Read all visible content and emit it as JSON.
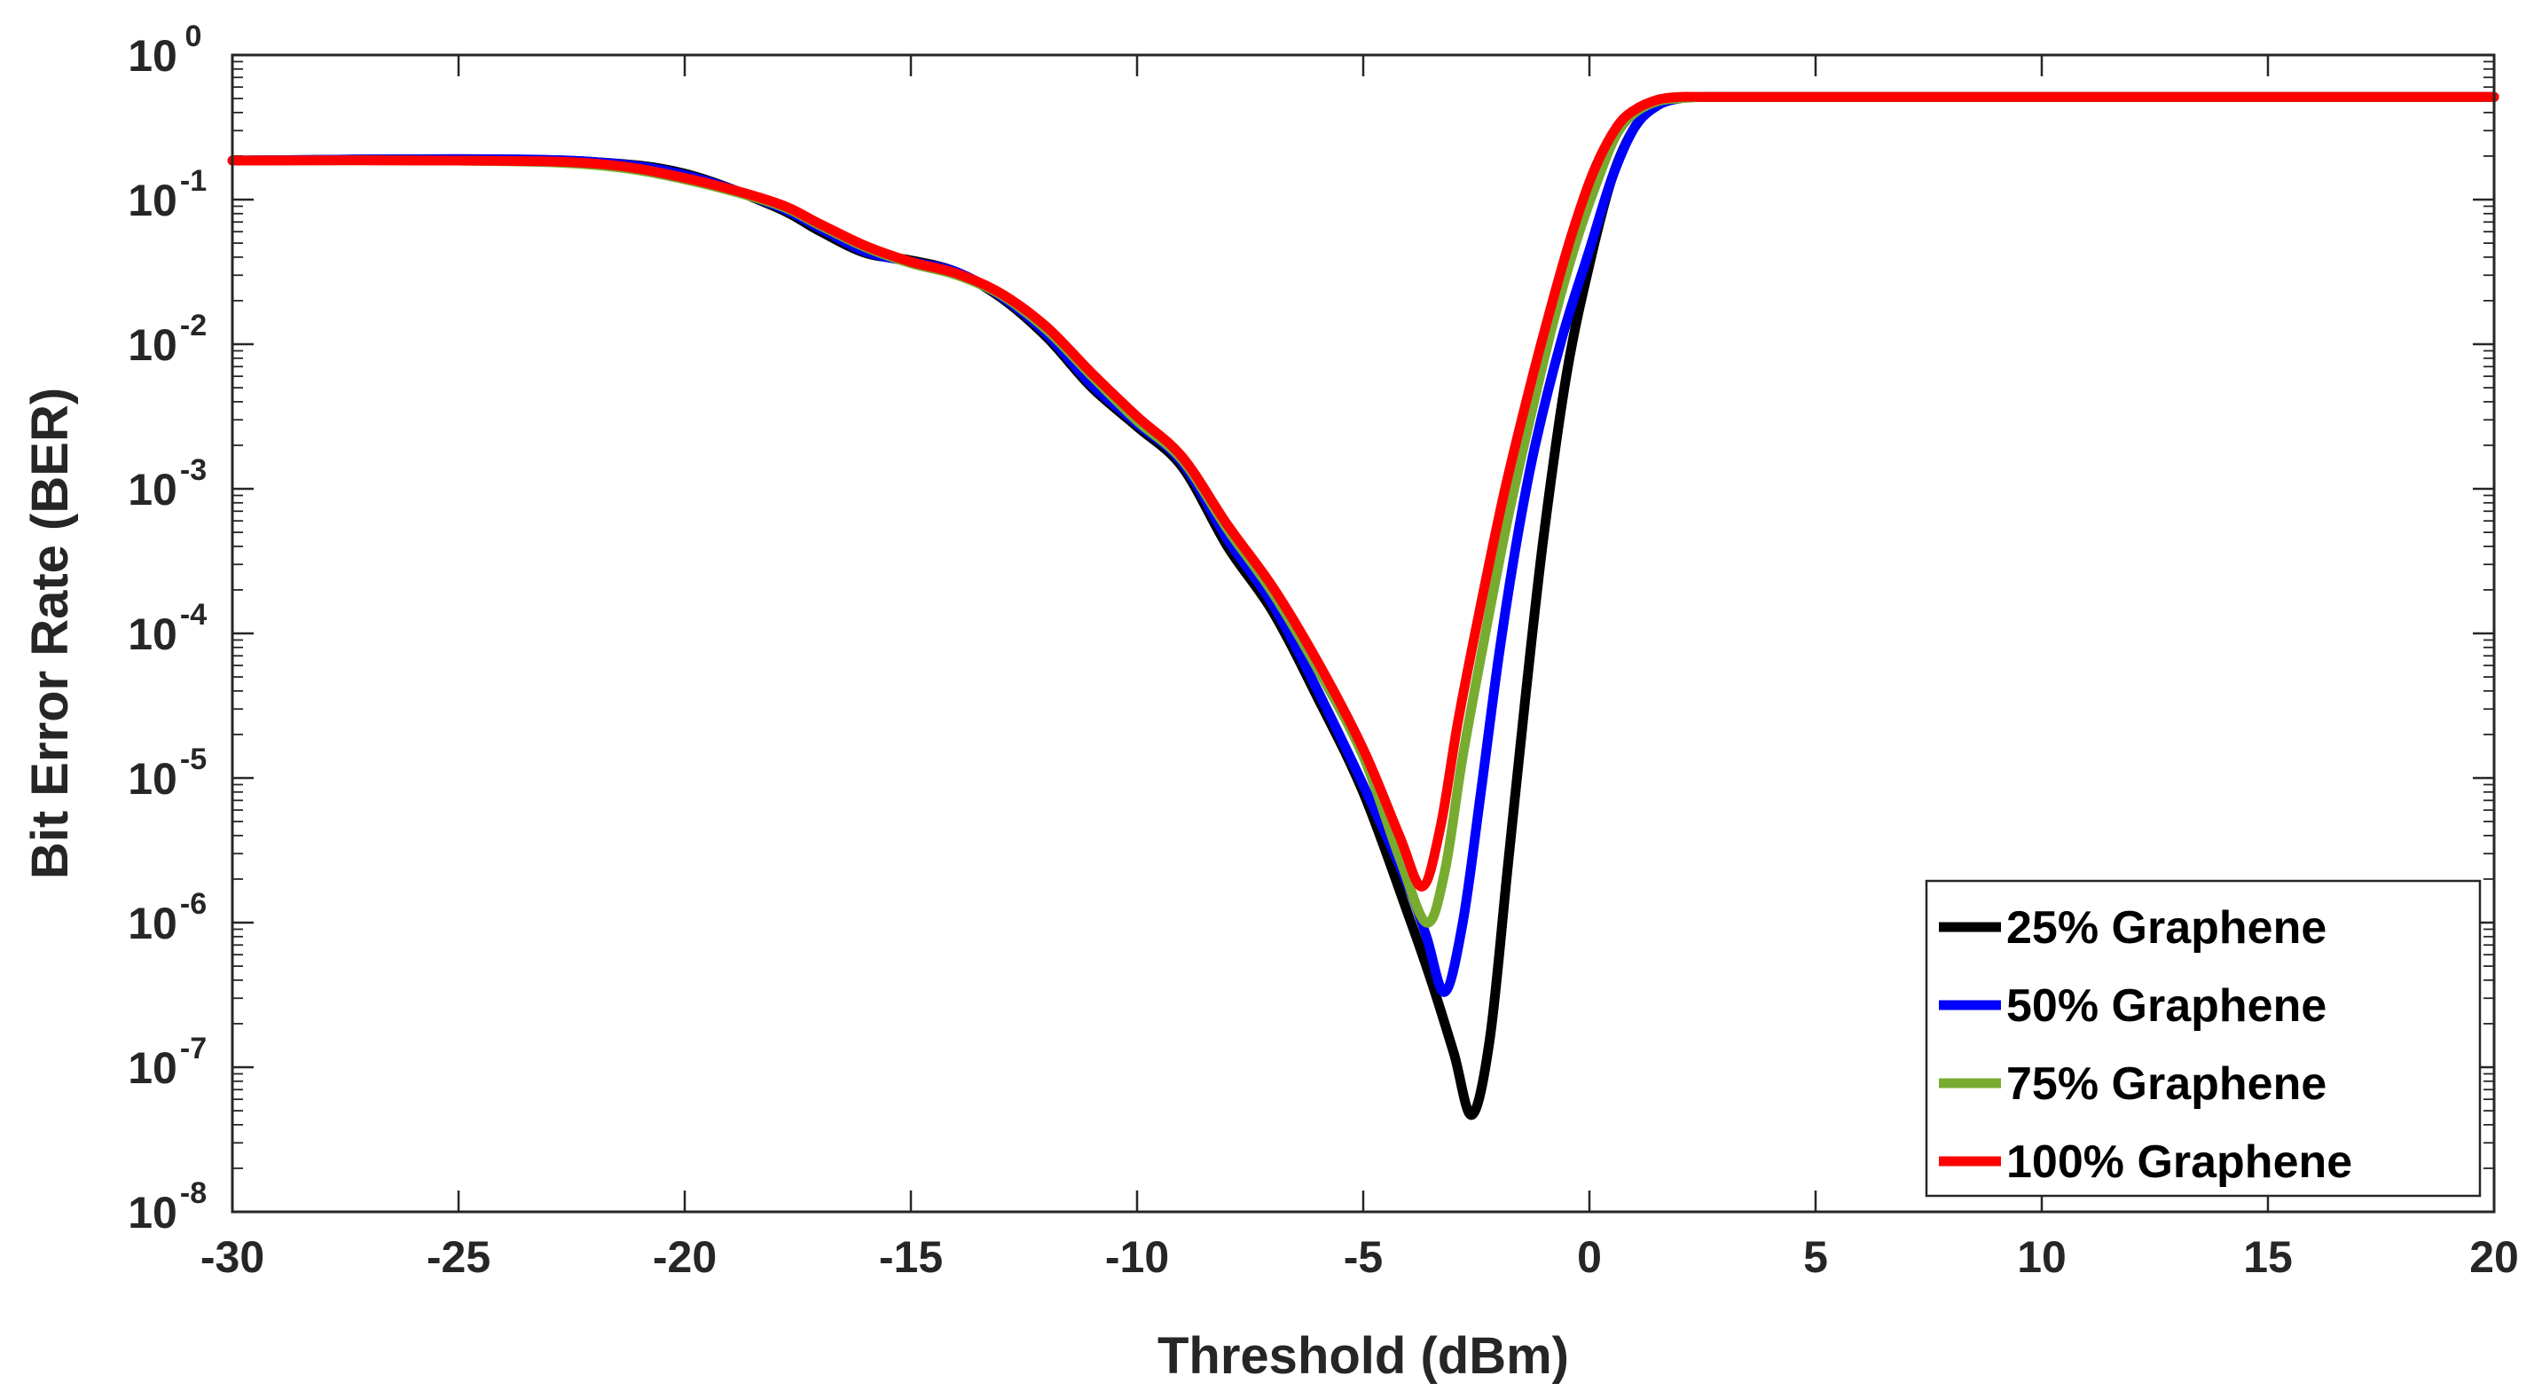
{
  "chart_data": {
    "type": "line",
    "title": "",
    "xlabel": "Threshold (dBm)",
    "ylabel": "Bit Error Rate (BER)",
    "xlim": [
      -30,
      20
    ],
    "ylim_log10": [
      -8,
      0
    ],
    "yscale": "log",
    "grid": false,
    "legend_position": "bottom-right",
    "x_ticks": [
      -30,
      -25,
      -20,
      -15,
      -10,
      -5,
      0,
      5,
      10,
      15,
      20
    ],
    "x_tick_labels": [
      "-30",
      "-25",
      "-20",
      "-15",
      "-10",
      "-5",
      "0",
      "5",
      "10",
      "15",
      "20"
    ],
    "y_ticks": [
      {
        "exp": 0,
        "base": "10",
        "label": "0"
      },
      {
        "exp": -1,
        "base": "10",
        "label": "-1"
      },
      {
        "exp": -2,
        "base": "10",
        "label": "-2"
      },
      {
        "exp": -3,
        "base": "10",
        "label": "-3"
      },
      {
        "exp": -4,
        "base": "10",
        "label": "-4"
      },
      {
        "exp": -5,
        "base": "10",
        "label": "-5"
      },
      {
        "exp": -6,
        "base": "10",
        "label": "-6"
      },
      {
        "exp": -7,
        "base": "10",
        "label": "-7"
      },
      {
        "exp": -8,
        "base": "10",
        "label": "-8"
      }
    ],
    "series": [
      {
        "name": "25% Graphene",
        "color": "#000000",
        "x": [
          -30,
          -25,
          -22,
          -20,
          -18,
          -17,
          -16,
          -15,
          -14,
          -13,
          -12,
          -11,
          -10,
          -9,
          -8,
          -7,
          -6,
          -5,
          -4,
          -3.5,
          -3,
          -2.6,
          -2.2,
          -1.8,
          -1.4,
          -1,
          -0.5,
          0,
          0.5,
          1,
          1.5,
          2,
          2.5,
          3,
          4,
          20
        ],
        "log_ber": [
          -0.73,
          -0.72,
          -0.74,
          -0.82,
          -1.05,
          -1.22,
          -1.37,
          -1.42,
          -1.5,
          -1.68,
          -1.95,
          -2.3,
          -2.57,
          -2.85,
          -3.4,
          -3.85,
          -4.45,
          -5.1,
          -5.95,
          -6.4,
          -6.9,
          -7.33,
          -6.8,
          -5.6,
          -4.4,
          -3.3,
          -2.2,
          -1.45,
          -0.85,
          -0.5,
          -0.35,
          -0.3,
          -0.29,
          -0.29,
          -0.29,
          -0.29
        ]
      },
      {
        "name": "50% Graphene",
        "color": "#0000ff",
        "x": [
          -30,
          -25,
          -22,
          -20,
          -18,
          -17,
          -16,
          -15,
          -14,
          -13,
          -12,
          -11,
          -10,
          -9,
          -8,
          -7,
          -6,
          -5,
          -4,
          -3.6,
          -3.2,
          -2.8,
          -2.4,
          -2,
          -1.6,
          -1.2,
          -0.6,
          0,
          0.5,
          1,
          1.5,
          2,
          2.5,
          3,
          4,
          20
        ],
        "log_ber": [
          -0.73,
          -0.72,
          -0.74,
          -0.83,
          -1.04,
          -1.2,
          -1.36,
          -1.43,
          -1.5,
          -1.67,
          -1.93,
          -2.28,
          -2.55,
          -2.82,
          -3.35,
          -3.8,
          -4.4,
          -5.05,
          -5.75,
          -6.1,
          -6.48,
          -6.0,
          -5.1,
          -4.15,
          -3.35,
          -2.7,
          -1.95,
          -1.35,
          -0.85,
          -0.5,
          -0.35,
          -0.3,
          -0.29,
          -0.29,
          -0.29,
          -0.29
        ]
      },
      {
        "name": "75% Graphene",
        "color": "#77ac30",
        "x": [
          -30,
          -25,
          -22,
          -20,
          -18,
          -17,
          -16,
          -15,
          -14,
          -13,
          -12,
          -11,
          -10,
          -9,
          -8,
          -7,
          -6,
          -5,
          -4.2,
          -3.6,
          -3.2,
          -2.8,
          -2.3,
          -1.8,
          -1.3,
          -0.8,
          -0.3,
          0.2,
          0.6,
          1,
          1.5,
          2,
          2.5,
          3,
          4,
          20
        ],
        "log_ber": [
          -0.73,
          -0.73,
          -0.76,
          -0.86,
          -1.03,
          -1.18,
          -1.33,
          -1.44,
          -1.52,
          -1.66,
          -1.9,
          -2.22,
          -2.53,
          -2.8,
          -3.28,
          -3.72,
          -4.25,
          -4.85,
          -5.55,
          -6.0,
          -5.65,
          -4.85,
          -4.0,
          -3.2,
          -2.5,
          -1.85,
          -1.3,
          -0.85,
          -0.55,
          -0.4,
          -0.32,
          -0.3,
          -0.29,
          -0.29,
          -0.29,
          -0.29
        ]
      },
      {
        "name": "100% Graphene",
        "color": "#ff0000",
        "x": [
          -30,
          -25,
          -22,
          -20,
          -18,
          -17,
          -16,
          -15,
          -14,
          -13,
          -12,
          -11,
          -10,
          -9,
          -8,
          -7,
          -6,
          -5,
          -4.2,
          -3.7,
          -3.3,
          -2.9,
          -2.4,
          -1.9,
          -1.4,
          -0.9,
          -0.4,
          0.1,
          0.6,
          1,
          1.5,
          2,
          2.5,
          3,
          4,
          20
        ],
        "log_ber": [
          -0.73,
          -0.73,
          -0.75,
          -0.85,
          -1.02,
          -1.17,
          -1.32,
          -1.43,
          -1.51,
          -1.65,
          -1.88,
          -2.2,
          -2.5,
          -2.78,
          -3.25,
          -3.68,
          -4.2,
          -4.8,
          -5.4,
          -5.75,
          -5.35,
          -4.6,
          -3.8,
          -3.05,
          -2.4,
          -1.8,
          -1.25,
          -0.8,
          -0.5,
          -0.38,
          -0.31,
          -0.29,
          -0.29,
          -0.29,
          -0.29,
          -0.29
        ]
      }
    ]
  }
}
